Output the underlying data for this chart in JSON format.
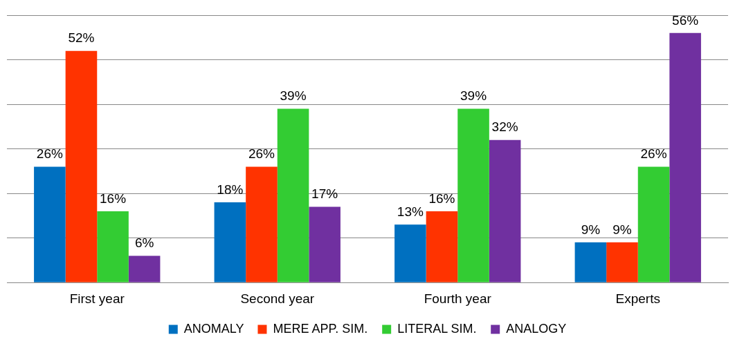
{
  "chart_data": {
    "type": "bar",
    "categories": [
      "First year",
      "Second year",
      "Fourth year",
      "Experts"
    ],
    "series": [
      {
        "name": "ANOMALY",
        "color": "#0070c0",
        "values": [
          26,
          18,
          13,
          9
        ],
        "value_labels": [
          "26%",
          "18%",
          "13%",
          "9%"
        ]
      },
      {
        "name": "MERE APP. SIM.",
        "color": "#ff3300",
        "values": [
          52,
          26,
          16,
          9
        ],
        "value_labels": [
          "52%",
          "26%",
          "16%",
          "9%"
        ]
      },
      {
        "name": "LITERAL SIM.",
        "color": "#33cc33",
        "values": [
          16,
          39,
          39,
          26
        ],
        "value_labels": [
          "16%",
          "39%",
          "39%",
          "26%"
        ]
      },
      {
        "name": "ANALOGY",
        "color": "#7030a0",
        "values": [
          6,
          17,
          32,
          56
        ],
        "value_labels": [
          "6%",
          "17%",
          "32%",
          "56%"
        ]
      }
    ],
    "ylim": [
      0,
      60
    ],
    "yticks": [
      {
        "value": 0,
        "label": null
      },
      {
        "value": 10,
        "label": null
      },
      {
        "value": 20,
        "label": null
      },
      {
        "value": 30,
        "label": null
      },
      {
        "value": 40,
        "label": null
      },
      {
        "value": 50,
        "label": null
      },
      {
        "value": 60,
        "label": null
      }
    ],
    "tick_labels": "x",
    "grid": "y",
    "legend": "bottom"
  }
}
